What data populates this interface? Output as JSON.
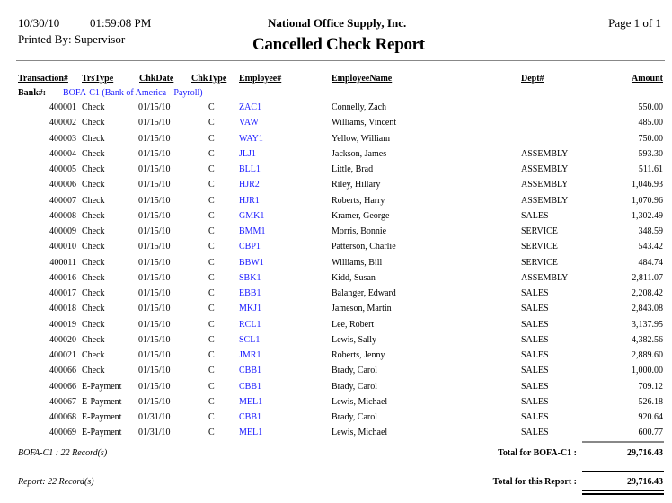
{
  "header": {
    "date": "10/30/10",
    "time": "01:59:08 PM",
    "company": "National Office Supply, Inc.",
    "page": "Page 1 of 1",
    "printed_by": "Printed By: Supervisor",
    "title": "Cancelled Check Report"
  },
  "columns": [
    "Transaction#",
    "TrsType",
    "ChkDate",
    "ChkType",
    "Employee#",
    "EmployeeName",
    "Dept#",
    "Amount"
  ],
  "bank": {
    "label": "Bank#:",
    "value": "BOFA-C1 (Bank of America - Payroll)"
  },
  "rows": [
    [
      "400001",
      "Check",
      "01/15/10",
      "C",
      "ZAC1",
      "Connelly, Zach",
      "",
      "550.00"
    ],
    [
      "400002",
      "Check",
      "01/15/10",
      "C",
      "VAW",
      "Williams, Vincent",
      "",
      "485.00"
    ],
    [
      "400003",
      "Check",
      "01/15/10",
      "C",
      "WAY1",
      "Yellow, William",
      "",
      "750.00"
    ],
    [
      "400004",
      "Check",
      "01/15/10",
      "C",
      "JLJ1",
      "Jackson, James",
      "ASSEMBLY",
      "593.30"
    ],
    [
      "400005",
      "Check",
      "01/15/10",
      "C",
      "BLL1",
      "Little, Brad",
      "ASSEMBLY",
      "511.61"
    ],
    [
      "400006",
      "Check",
      "01/15/10",
      "C",
      "HJR2",
      "Riley, Hillary",
      "ASSEMBLY",
      "1,046.93"
    ],
    [
      "400007",
      "Check",
      "01/15/10",
      "C",
      "HJR1",
      "Roberts, Harry",
      "ASSEMBLY",
      "1,070.96"
    ],
    [
      "400008",
      "Check",
      "01/15/10",
      "C",
      "GMK1",
      "Kramer, George",
      "SALES",
      "1,302.49"
    ],
    [
      "400009",
      "Check",
      "01/15/10",
      "C",
      "BMM1",
      "Morris, Bonnie",
      "SERVICE",
      "348.59"
    ],
    [
      "400010",
      "Check",
      "01/15/10",
      "C",
      "CBP1",
      "Patterson, Charlie",
      "SERVICE",
      "543.42"
    ],
    [
      "400011",
      "Check",
      "01/15/10",
      "C",
      "BBW1",
      "Williams, Bill",
      "SERVICE",
      "484.74"
    ],
    [
      "400016",
      "Check",
      "01/15/10",
      "C",
      "SBK1",
      "Kidd, Susan",
      "ASSEMBLY",
      "2,811.07"
    ],
    [
      "400017",
      "Check",
      "01/15/10",
      "C",
      "EBB1",
      "Balanger, Edward",
      "SALES",
      "2,208.42"
    ],
    [
      "400018",
      "Check",
      "01/15/10",
      "C",
      "MKJ1",
      "Jameson, Martin",
      "SALES",
      "2,843.08"
    ],
    [
      "400019",
      "Check",
      "01/15/10",
      "C",
      "RCL1",
      "Lee, Robert",
      "SALES",
      "3,137.95"
    ],
    [
      "400020",
      "Check",
      "01/15/10",
      "C",
      "SCL1",
      "Lewis, Sally",
      "SALES",
      "4,382.56"
    ],
    [
      "400021",
      "Check",
      "01/15/10",
      "C",
      "JMR1",
      "Roberts, Jenny",
      "SALES",
      "2,889.60"
    ],
    [
      "400066",
      "Check",
      "01/15/10",
      "C",
      "CBB1",
      "Brady, Carol",
      "SALES",
      "1,000.00"
    ],
    [
      "400066",
      "E-Payment",
      "01/15/10",
      "C",
      "CBB1",
      "Brady, Carol",
      "SALES",
      "709.12"
    ],
    [
      "400067",
      "E-Payment",
      "01/15/10",
      "C",
      "MEL1",
      "Lewis, Michael",
      "SALES",
      "526.18"
    ],
    [
      "400068",
      "E-Payment",
      "01/31/10",
      "C",
      "CBB1",
      "Brady, Carol",
      "SALES",
      "920.64"
    ],
    [
      "400069",
      "E-Payment",
      "01/31/10",
      "C",
      "MEL1",
      "Lewis, Michael",
      "SALES",
      "600.77"
    ]
  ],
  "bank_footer": {
    "records": "BOFA-C1 : 22 Record(s)",
    "total_label": "Total for BOFA-C1 :",
    "total": "29,716.43"
  },
  "report_footer": {
    "records": "Report: 22 Record(s)",
    "total_label": "Total for this Report :",
    "total": "29,716.43"
  },
  "colors": {
    "link": "#1a1aff"
  }
}
